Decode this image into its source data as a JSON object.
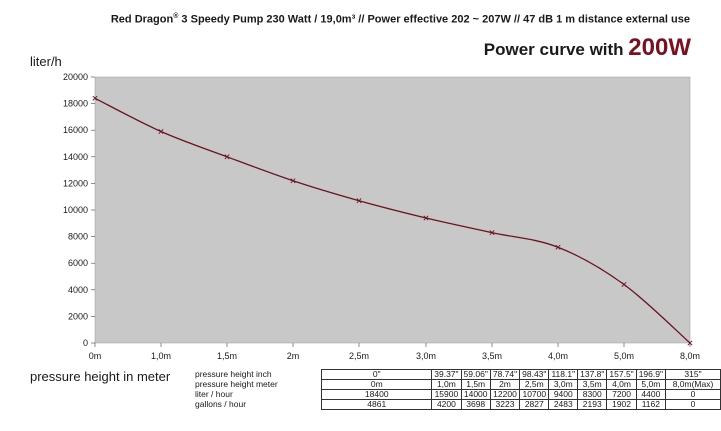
{
  "header": {
    "brand": "Red Dragon",
    "reg": "®",
    "rest": " 3 Speedy Pump 230 Watt / 19,0m³  // Power effective 202 ~ 207W // 47 dB 1 m distance external use"
  },
  "subtitle": {
    "text": "Power curve with ",
    "watt": "200W"
  },
  "colors": {
    "plot_bg": "#c8c8c8",
    "curve": "#6b1420",
    "watt_accent": "#7a1020"
  },
  "chart_data": {
    "type": "line",
    "title": "Power curve with 200W",
    "ylabel": "liter/h",
    "xlabel": "pressure height in meter",
    "x_tick_labels": [
      "0m",
      "1,0m",
      "1,5m",
      "2m",
      "2,5m",
      "3,0m",
      "3,5m",
      "4,0m",
      "5,0m",
      "8,0m"
    ],
    "y_ticks": [
      0,
      2000,
      4000,
      6000,
      8000,
      10000,
      12000,
      14000,
      16000,
      18000,
      20000
    ],
    "ylim": [
      0,
      20000
    ],
    "grid": false,
    "series": [
      {
        "values": [
          18400,
          15900,
          14000,
          12200,
          10700,
          9400,
          8300,
          7200,
          4400,
          0
        ]
      }
    ]
  },
  "table": {
    "rows": [
      {
        "label": "pressure height inch",
        "values": [
          "0\"",
          "39.37\"",
          "59.06\"",
          "78.74\"",
          "98.43\"",
          "118.1\"",
          "137.8\"",
          "157.5\"",
          "196.9\"",
          "315\""
        ]
      },
      {
        "label": "pressure height meter",
        "values": [
          "0m",
          "1,0m",
          "1,5m",
          "2m",
          "2,5m",
          "3,0m",
          "3,5m",
          "4,0m",
          "5,0m",
          "8,0m(Max)"
        ]
      },
      {
        "label": "liter / hour",
        "values": [
          "18400",
          "15900",
          "14000",
          "12200",
          "10700",
          "9400",
          "8300",
          "7200",
          "4400",
          "0"
        ]
      },
      {
        "label": "gallons / hour",
        "values": [
          "4861",
          "4200",
          "3698",
          "3223",
          "2827",
          "2483",
          "2193",
          "1902",
          "1162",
          "0"
        ]
      }
    ]
  }
}
